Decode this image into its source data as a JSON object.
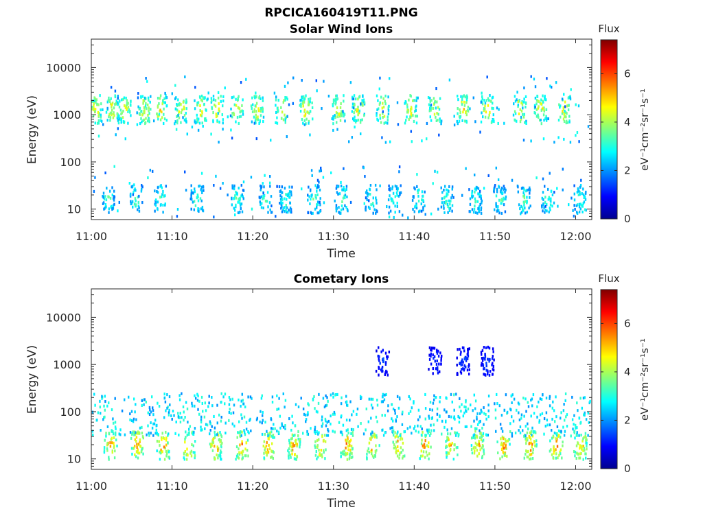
{
  "figure": {
    "title": "RPCICA160419T11.PNG"
  },
  "chart_data": [
    {
      "type": "heatmap",
      "title": "Solar Wind Ions",
      "xlabel": "Time",
      "ylabel": "Energy (eV)",
      "x_ticks": [
        "11:00",
        "11:10",
        "11:20",
        "11:30",
        "11:40",
        "11:50",
        "12:00"
      ],
      "x_range_minutes": [
        0,
        62
      ],
      "y_scale": "log",
      "y_ticks": [
        "10",
        "100",
        "1000",
        "10000"
      ],
      "y_range": [
        6,
        40000
      ],
      "colorbar": {
        "title": "Flux",
        "unit": "eV⁻¹cm⁻²sr⁻¹s⁻¹",
        "min": 0,
        "max": 7.4,
        "ticks": [
          "0",
          "2",
          "4",
          "6"
        ],
        "colormap": "jet"
      },
      "features": [
        {
          "description": "high-energy beam",
          "energy_center_eV": 1200,
          "flux_peak": 5.2,
          "times_min": [
            0.5,
            2.5,
            4.0,
            6.5,
            8.5,
            11.0,
            13.5,
            15.5,
            18.0,
            20.5,
            23.5,
            26.5,
            30.5,
            33.0,
            36.0,
            39.5,
            42.5,
            46.0,
            49.0,
            53.0,
            55.5,
            58.5
          ]
        },
        {
          "description": "low-energy bursts",
          "energy_center_eV": 15,
          "flux_peak": 3.8,
          "times_min": [
            2.0,
            5.5,
            8.5,
            13.0,
            18.0,
            21.5,
            24.0,
            27.5,
            31.0,
            34.5,
            37.5,
            40.5,
            44.0,
            47.5,
            50.5,
            53.5,
            56.5,
            60.5
          ]
        }
      ]
    },
    {
      "type": "heatmap",
      "title": "Cometary Ions",
      "xlabel": "Time",
      "ylabel": "Energy (eV)",
      "x_ticks": [
        "11:00",
        "11:10",
        "11:20",
        "11:30",
        "11:40",
        "11:50",
        "12:00"
      ],
      "x_range_minutes": [
        0,
        62
      ],
      "y_scale": "log",
      "y_ticks": [
        "10",
        "100",
        "1000",
        "10000"
      ],
      "y_range": [
        6,
        40000
      ],
      "colorbar": {
        "title": "Flux",
        "unit": "eV⁻¹cm⁻²sr⁻¹s⁻¹",
        "min": 0,
        "max": 7.4,
        "ticks": [
          "0",
          "2",
          "4",
          "6"
        ],
        "colormap": "jet"
      },
      "features": [
        {
          "description": "cometary ion bursts",
          "energy_center_eV": 18,
          "flux_peak": 6.0,
          "times_min": [
            2.3,
            5.6,
            8.8,
            12.0,
            15.3,
            18.6,
            21.8,
            25.0,
            28.3,
            31.6,
            34.8,
            38.0,
            41.2,
            44.5,
            47.8,
            51.0,
            54.3,
            57.5,
            60.5
          ]
        },
        {
          "description": "mid-energy scatter",
          "energy_center_eV": 80,
          "flux_peak": 3.2,
          "times_min": []
        },
        {
          "description": "high-energy beam",
          "energy_center_eV": 1100,
          "flux_peak": 1.6,
          "times_min": [
            36.0,
            42.5,
            46.0,
            49.0
          ]
        }
      ]
    }
  ]
}
